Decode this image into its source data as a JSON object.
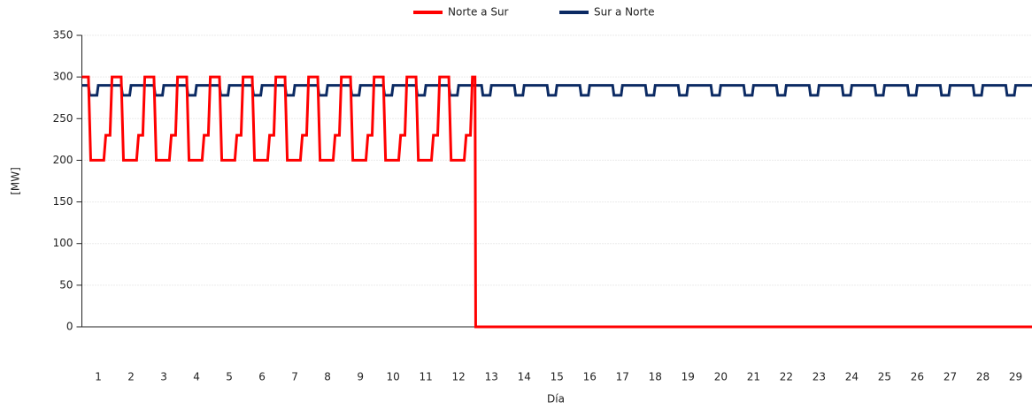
{
  "chart_data": {
    "type": "line",
    "ylabel": "[MW]",
    "xlabel": "Día",
    "xlim": [
      0.5,
      29.5
    ],
    "xticks": [
      1,
      2,
      3,
      4,
      5,
      6,
      7,
      8,
      9,
      10,
      11,
      12,
      13,
      14,
      15,
      16,
      17,
      18,
      19,
      20,
      21,
      22,
      23,
      24,
      25,
      26,
      27,
      28,
      29
    ],
    "ylim": [
      0,
      350
    ],
    "yticks": [
      0,
      50,
      100,
      150,
      200,
      250,
      300,
      350
    ],
    "grid": true,
    "legend": "top",
    "series": [
      {
        "name": "Norte a Sur",
        "color": "#ff0000",
        "x": [
          0.5,
          0.7,
          0.77,
          1.17,
          1.23,
          1.36,
          1.42,
          1.7,
          1.77,
          2.17,
          2.23,
          2.36,
          2.42,
          2.7,
          2.77,
          3.17,
          3.23,
          3.36,
          3.42,
          3.7,
          3.77,
          4.17,
          4.23,
          4.36,
          4.42,
          4.7,
          4.77,
          5.17,
          5.23,
          5.36,
          5.42,
          5.7,
          5.77,
          6.17,
          6.23,
          6.36,
          6.42,
          6.7,
          6.77,
          7.17,
          7.23,
          7.36,
          7.42,
          7.7,
          7.77,
          8.17,
          8.23,
          8.36,
          8.42,
          8.7,
          8.77,
          9.17,
          9.23,
          9.36,
          9.42,
          9.7,
          9.77,
          10.17,
          10.23,
          10.36,
          10.42,
          10.7,
          10.77,
          11.17,
          11.23,
          11.36,
          11.42,
          11.7,
          11.77,
          12.17,
          12.23,
          12.36,
          12.42,
          12.5,
          12.52,
          29.5
        ],
        "values": [
          300,
          300,
          200,
          200,
          230,
          230,
          300,
          300,
          200,
          200,
          230,
          230,
          300,
          300,
          200,
          200,
          230,
          230,
          300,
          300,
          200,
          200,
          230,
          230,
          300,
          300,
          200,
          200,
          230,
          230,
          300,
          300,
          200,
          200,
          230,
          230,
          300,
          300,
          200,
          200,
          230,
          230,
          300,
          300,
          200,
          200,
          230,
          230,
          300,
          300,
          200,
          200,
          230,
          230,
          300,
          300,
          200,
          200,
          230,
          230,
          300,
          300,
          200,
          200,
          230,
          230,
          300,
          300,
          200,
          200,
          230,
          230,
          300,
          300,
          0,
          0
        ]
      },
      {
        "name": "Sur a Norte",
        "color": "#0b2a63",
        "x": [
          0.5,
          0.7,
          0.74,
          0.96,
          1,
          1.7,
          1.74,
          1.96,
          2,
          2.7,
          2.74,
          2.96,
          3,
          3.7,
          3.74,
          3.96,
          4,
          4.7,
          4.74,
          4.96,
          5,
          5.7,
          5.74,
          5.96,
          6,
          6.7,
          6.74,
          6.96,
          7,
          7.7,
          7.74,
          7.96,
          8,
          8.7,
          8.74,
          8.96,
          9,
          9.7,
          9.74,
          9.96,
          10,
          10.7,
          10.74,
          10.96,
          11,
          11.7,
          11.74,
          11.96,
          12,
          12.7,
          12.74,
          12.96,
          13,
          13.7,
          13.74,
          13.96,
          14,
          14.7,
          14.74,
          14.96,
          15,
          15.7,
          15.74,
          15.96,
          16,
          16.7,
          16.74,
          16.96,
          17,
          17.7,
          17.74,
          17.96,
          18,
          18.7,
          18.74,
          18.96,
          19,
          19.7,
          19.74,
          19.96,
          20,
          20.7,
          20.74,
          20.96,
          21,
          21.7,
          21.74,
          21.96,
          22,
          22.7,
          22.74,
          22.96,
          23,
          23.7,
          23.74,
          23.96,
          24,
          24.7,
          24.74,
          24.96,
          25,
          25.7,
          25.74,
          25.96,
          26,
          26.7,
          26.74,
          26.96,
          27,
          27.7,
          27.74,
          27.96,
          28,
          28.7,
          28.74,
          28.96,
          29,
          29.5
        ],
        "values": [
          290,
          290,
          278,
          278,
          290,
          290,
          278,
          278,
          290,
          290,
          278,
          278,
          290,
          290,
          278,
          278,
          290,
          290,
          278,
          278,
          290,
          290,
          278,
          278,
          290,
          290,
          278,
          278,
          290,
          290,
          278,
          278,
          290,
          290,
          278,
          278,
          290,
          290,
          278,
          278,
          290,
          290,
          278,
          278,
          290,
          290,
          278,
          278,
          290,
          290,
          278,
          278,
          290,
          290,
          278,
          278,
          290,
          290,
          278,
          278,
          290,
          290,
          278,
          278,
          290,
          290,
          278,
          278,
          290,
          290,
          278,
          278,
          290,
          290,
          278,
          278,
          290,
          290,
          278,
          278,
          290,
          290,
          278,
          278,
          290,
          290,
          278,
          278,
          290,
          290,
          278,
          278,
          290,
          290,
          278,
          278,
          290,
          290,
          278,
          278,
          290,
          290,
          278,
          278,
          290,
          290,
          278,
          278,
          290,
          290,
          278,
          278,
          290,
          290,
          278,
          278,
          290,
          290
        ]
      }
    ]
  }
}
